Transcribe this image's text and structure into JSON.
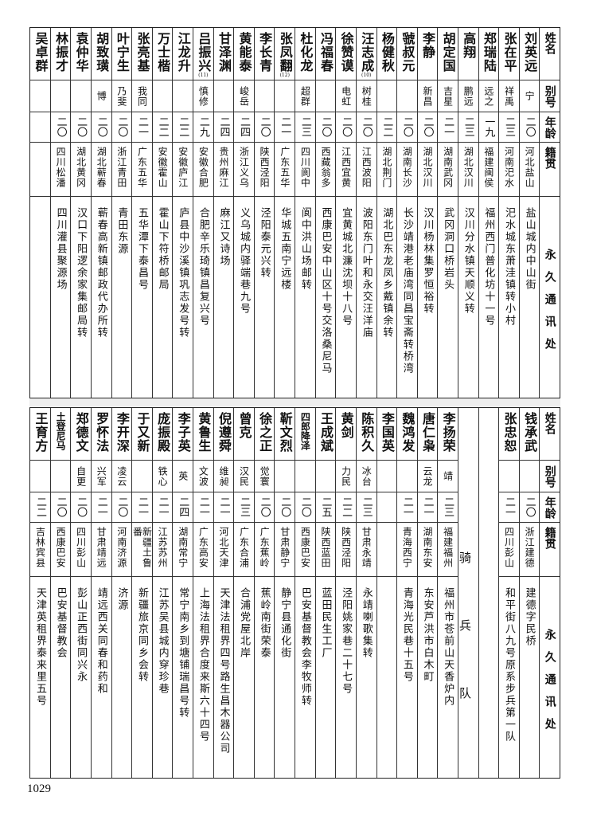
{
  "headers": {
    "name": "姓名",
    "alias": "别号",
    "age": "年龄",
    "origin": "籍贯",
    "address": "永久通讯处"
  },
  "top": {
    "rows": [
      {
        "name": "刘英远",
        "alias": "宁",
        "age": "二〇",
        "origin": "河北盐山",
        "address": "盐山城内中山街"
      },
      {
        "name": "张在平",
        "alias": "祥禹",
        "age": "二三",
        "origin": "河南汜水",
        "address": "汜水城东萧洼镇转小村"
      },
      {
        "name": "郑瑞陆",
        "alias": "远之",
        "age": "一九",
        "origin": "福建闽侯",
        "address": "福州西门普化坊十一号"
      },
      {
        "name": "高翔",
        "alias": "鹏远",
        "age": "二三",
        "origin": "湖北汉川",
        "address": "汉川分水镇天顺义转"
      },
      {
        "name": "胡定国",
        "alias": "吉星",
        "age": "二一",
        "origin": "湖南武冈",
        "address": "武冈洞口桥岩头"
      },
      {
        "name": "李静",
        "alias": "新昌",
        "age": "二〇",
        "origin": "湖北汉川",
        "address": "汉川杨林集罗恒裕转"
      },
      {
        "name": "虢叔元",
        "alias": "",
        "age": "二〇",
        "origin": "湖南长沙",
        "address": "长沙靖港老庙湾同昌宝斋转桥湾"
      },
      {
        "name": "杨健秋",
        "alias": "",
        "age": "二二",
        "origin": "湖北荆门",
        "address": "湖北巴东龙凤乡戴镇余转"
      },
      {
        "name": "汪志成",
        "note": "(10)",
        "alias": "树桂",
        "age": "二〇",
        "origin": "江西波阳",
        "address": "波阳东门叶和永交汪洋庙"
      },
      {
        "name": "徐赞谟",
        "alias": "电虹",
        "age": "二〇",
        "origin": "江西宜黄",
        "address": "宜黄城北濂沈坝十八号"
      },
      {
        "name": "冯福春",
        "alias": "",
        "age": "二〇",
        "origin": "西藏翁多",
        "address": "西康巴安中山区十号交洛桑尼马"
      },
      {
        "name": "杜化龙",
        "alias": "超群",
        "age": "二三",
        "origin": "四川阆中",
        "address": "阆中洪山场邮转"
      },
      {
        "name": "张凤翻",
        "note": "(12)",
        "alias": "",
        "age": "二一",
        "origin": "广东五华",
        "address": "华城五南宁远楼"
      },
      {
        "name": "李长青",
        "alias": "",
        "age": "二〇",
        "origin": "陕西泾阳",
        "address": "泾阳泰元兴转"
      },
      {
        "name": "黄能泰",
        "alias": "峻岳",
        "age": "二四",
        "origin": "浙江义乌",
        "address": "义乌城内驿端巷九号"
      },
      {
        "name": "甘泽渊",
        "alias": "",
        "age": "二四",
        "origin": "贵州麻江",
        "address": "麻江又诗场"
      },
      {
        "name": "吕振兴",
        "note": "(11)",
        "alias": "慎修",
        "age": "二九",
        "origin": "安徽合肥",
        "address": "合肥辛乐琦镇昌复兴号"
      },
      {
        "name": "江龙升",
        "alias": "",
        "age": "二二",
        "origin": "安徽庐江",
        "address": "庐县中沙溪镇巩志发号转"
      },
      {
        "name": "万士楷",
        "alias": "",
        "age": "二二",
        "origin": "安徽霍山",
        "address": "霍山下符桥邮局"
      },
      {
        "name": "张亮基",
        "alias": "我同",
        "age": "二一",
        "origin": "广东五华",
        "address": "五华潭下泰昌号"
      },
      {
        "name": "叶宁生",
        "alias": "乃斐",
        "age": "二〇",
        "origin": "浙江青田",
        "address": "青田东源"
      },
      {
        "name": "胡致璜",
        "alias": "博",
        "age": "二〇",
        "origin": "湖北蕲春",
        "address": "蕲春高新镇邮政代办所转"
      },
      {
        "name": "袁仲华",
        "alias": "",
        "age": "二〇",
        "origin": "湖北黄冈",
        "address": "汉口下阳逻余家集邮局转"
      },
      {
        "name": "林振才",
        "alias": "",
        "age": "二〇",
        "origin": "四川松潘",
        "address": "四川灌县聚源场"
      },
      {
        "name": "吴卓群",
        "alias": "",
        "age": "",
        "origin": "",
        "address": ""
      }
    ]
  },
  "bottom": {
    "rows_before": [
      {
        "name": "钱承武",
        "alias": "",
        "age": "二〇",
        "origin": "浙江建德",
        "address": "建德字民桥"
      },
      {
        "name": "张忠恕",
        "alias": "",
        "age": "二一",
        "origin": "四川彭山",
        "address": "和平街八九号原系步兵第一队"
      }
    ],
    "section_label": "骑兵队",
    "rows": [
      {
        "name": "李扬荣",
        "alias": "靖",
        "age": "二三",
        "origin": "福建福州",
        "address": "福州市苍前山天香炉内"
      },
      {
        "name": "唐仁枭",
        "alias": "云龙",
        "age": "二一",
        "origin": "湖南东安",
        "address": "东安芦洪市白木町"
      },
      {
        "name": "魏鸿发",
        "alias": "",
        "age": "二一",
        "origin": "青海西宁",
        "address": "青海光民巷十五号"
      },
      {
        "name": "李国英",
        "alias": "",
        "age": "",
        "origin": "",
        "address": ""
      },
      {
        "name": "陈积久",
        "alias": "冰台",
        "age": "二三",
        "origin": "甘肃永靖",
        "address": "永靖喇歌集转"
      },
      {
        "name": "黄剑",
        "alias": "力民",
        "age": "二二",
        "origin": "陕西泾阳",
        "address": "泾阳姚家巷二十七号"
      },
      {
        "name": "王成斌",
        "alias": "",
        "age": "二五",
        "origin": "陕西蓝田",
        "address": "蓝田民生工厂"
      },
      {
        "name": "四郎降泽",
        "alias": "",
        "age": "二〇",
        "origin": "西康巴安",
        "address": "巴安基督教会李牧师转"
      },
      {
        "name": "靳文烈",
        "alias": "",
        "age": "二〇",
        "origin": "甘肃静宁",
        "address": "静宁县通化街"
      },
      {
        "name": "徐之正",
        "alias": "觉寰",
        "age": "二〇",
        "origin": "广东蕉岭",
        "address": "蕉岭南街荣泰"
      },
      {
        "name": "曾克",
        "alias": "汉民",
        "age": "二三",
        "origin": "广东合浦",
        "address": "合浦党屋北岸"
      },
      {
        "name": "倪遵舜",
        "alias": "维昶",
        "age": "二一",
        "origin": "河北天津",
        "address": "天津法租界四号路生昌木器公司"
      },
      {
        "name": "黄鲁生",
        "alias": "文波",
        "age": "二一",
        "origin": "广东高安",
        "address": "上海法租界合度来斯六十四号"
      },
      {
        "name": "李子英",
        "alias": "英",
        "age": "二四",
        "origin": "湖南常宁",
        "address": "常宁南乡到塘铺瑞昌号转"
      },
      {
        "name": "庞振殿",
        "alias": "铁心",
        "age": "二一",
        "origin": "江苏苏州",
        "address": "江苏吴县城内穿珍巷"
      },
      {
        "name": "于又新",
        "alias": "",
        "age": "二一",
        "origin": "新疆土鲁番",
        "address": "新疆旅京同乡会转"
      },
      {
        "name": "李开深",
        "alias": "凌云",
        "age": "二〇",
        "origin": "河南济源",
        "address": "济源"
      },
      {
        "name": "罗怀法",
        "alias": "兴军",
        "age": "二一",
        "origin": "甘肃靖远",
        "address": "靖远西关同春和药和"
      },
      {
        "name": "郑德文",
        "alias": "自更",
        "age": "二〇",
        "origin": "四川彭山",
        "address": "彭山正西街同兴永"
      },
      {
        "name": "土登尼马",
        "alias": "",
        "age": "二〇",
        "origin": "西康巴安",
        "address": "巴安基督教会"
      },
      {
        "name": "王育方",
        "alias": "",
        "age": "二二",
        "origin": "吉林宾县",
        "address": "天津英租界泰来里五号"
      }
    ]
  },
  "page_number": "1029"
}
